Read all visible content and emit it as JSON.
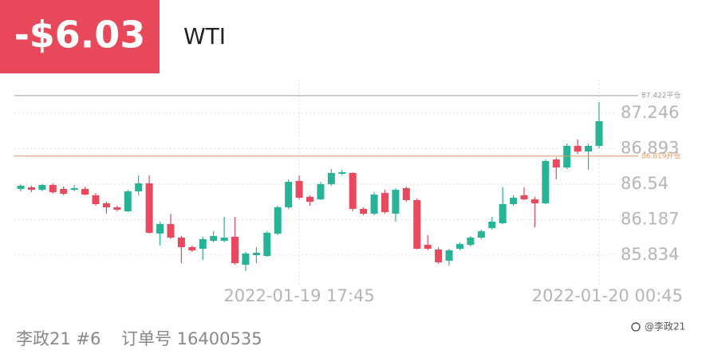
{
  "header": {
    "amount": "-$6.03",
    "symbol": "WTI"
  },
  "footer": {
    "account": "李政21 #6",
    "order": "订单号 16400535",
    "watermark": "@李政21"
  },
  "chart_data": {
    "type": "candlestick",
    "categories": [
      null,
      null,
      null,
      null,
      null,
      null,
      null,
      null,
      null,
      null,
      null,
      null,
      null,
      null,
      null,
      null,
      null,
      null,
      null,
      null,
      null,
      null,
      null,
      null,
      null,
      null,
      "2022-01-19 17:45",
      null,
      null,
      null,
      null,
      null,
      null,
      null,
      null,
      null,
      null,
      null,
      null,
      null,
      null,
      null,
      null,
      null,
      null,
      null,
      null,
      null,
      null,
      null,
      null,
      null,
      null,
      null,
      "2022-01-20 00:45"
    ],
    "open": [
      86.492,
      86.508,
      86.484,
      86.532,
      86.492,
      86.484,
      86.492,
      86.429,
      86.349,
      86.309,
      86.27,
      86.468,
      86.548,
      86.048,
      86.143,
      86.008,
      85.913,
      85.897,
      85.976,
      85.976,
      86.016,
      85.738,
      85.833,
      85.825,
      86.048,
      86.309,
      86.571,
      86.413,
      86.389,
      86.54,
      86.643,
      86.651,
      86.294,
      86.246,
      86.452,
      86.246,
      86.5,
      86.381,
      85.936,
      85.889,
      85.778,
      85.897,
      85.936,
      86.008,
      86.103,
      86.151,
      86.341,
      86.429,
      86.389,
      86.349,
      86.786,
      86.706,
      86.921,
      86.865,
      86.921
    ],
    "high": [
      86.54,
      86.524,
      86.54,
      86.548,
      86.516,
      86.532,
      86.516,
      86.452,
      86.365,
      86.325,
      86.484,
      86.627,
      86.627,
      86.167,
      86.246,
      86.024,
      85.929,
      86.016,
      86.071,
      86.214,
      86.214,
      85.865,
      85.913,
      86.071,
      86.325,
      86.587,
      86.627,
      86.429,
      86.563,
      86.69,
      86.683,
      86.659,
      86.309,
      86.46,
      86.484,
      86.5,
      86.516,
      86.397,
      86.032,
      85.913,
      85.897,
      85.96,
      86.024,
      86.087,
      86.214,
      86.508,
      86.429,
      86.508,
      86.413,
      86.786,
      86.802,
      86.944,
      86.984,
      86.944,
      87.357
    ],
    "low": [
      86.468,
      86.46,
      86.468,
      86.444,
      86.429,
      86.468,
      86.429,
      86.325,
      86.246,
      86.27,
      86.262,
      86.429,
      86.048,
      85.929,
      85.992,
      85.754,
      85.865,
      85.786,
      85.96,
      85.96,
      85.738,
      85.675,
      85.754,
      85.817,
      86.032,
      86.294,
      86.389,
      86.325,
      86.381,
      86.524,
      86.627,
      86.27,
      86.23,
      86.23,
      86.246,
      86.167,
      86.365,
      85.889,
      85.881,
      85.746,
      85.73,
      85.881,
      85.921,
      85.992,
      86.087,
      86.143,
      86.325,
      86.381,
      86.111,
      86.341,
      86.587,
      86.69,
      86.841,
      86.683,
      86.897
    ],
    "close": [
      86.524,
      86.484,
      86.532,
      86.46,
      86.444,
      86.5,
      86.436,
      86.341,
      86.309,
      86.286,
      86.468,
      86.548,
      86.056,
      86.143,
      86.008,
      85.913,
      85.881,
      85.992,
      86.024,
      86.008,
      85.754,
      85.849,
      85.857,
      86.056,
      86.309,
      86.563,
      86.405,
      86.365,
      86.54,
      86.651,
      86.659,
      86.294,
      86.246,
      86.436,
      86.262,
      86.484,
      86.381,
      85.897,
      85.897,
      85.762,
      85.881,
      85.944,
      86.008,
      86.071,
      86.167,
      86.341,
      86.405,
      86.389,
      86.349,
      86.77,
      86.706,
      86.921,
      86.865,
      86.921,
      87.167
    ],
    "up_color": "#27b396",
    "down_color": "#e8495d",
    "ylim": [
      85.55,
      87.6
    ],
    "yticks": [
      85.834,
      86.187,
      86.54,
      86.893,
      87.246
    ],
    "grid": true,
    "levels": [
      {
        "value": 87.422,
        "label": "87.422平仓",
        "color": "#9a9a9a"
      },
      {
        "value": 86.819,
        "label": "86.819开仓",
        "color": "#f0955a"
      }
    ],
    "header_color": "#e8495a"
  }
}
